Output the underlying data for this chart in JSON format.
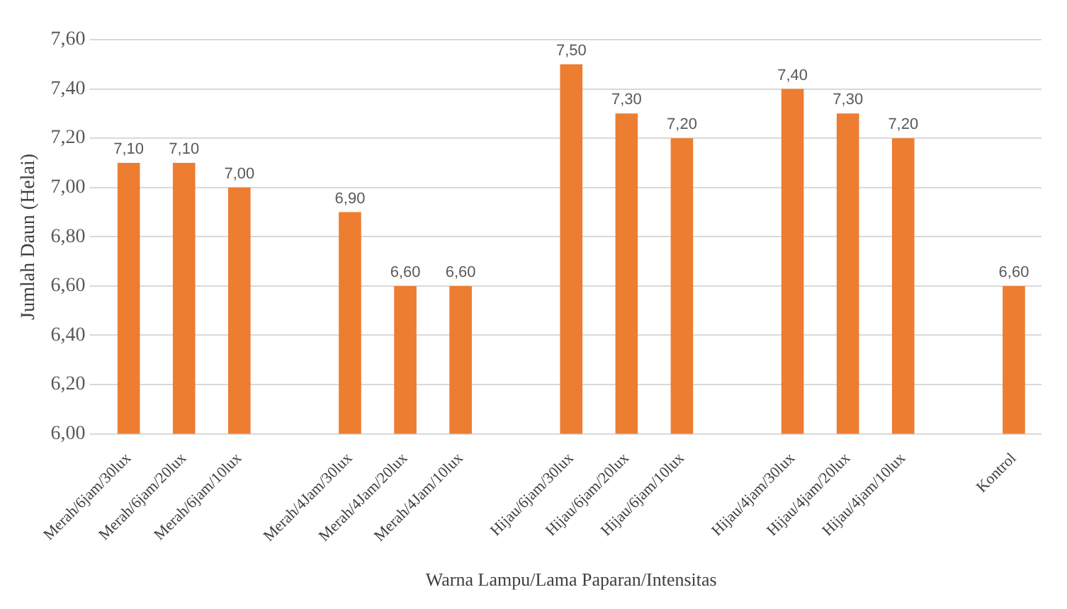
{
  "chart_data": {
    "type": "bar",
    "xlabel": "Warna Lampu/Lama Paparan/Intensitas",
    "ylabel": "Jumlah Daun (Helai)",
    "categories": [
      "Merah/6jam/30lux",
      "Merah/6jam/20lux",
      "Merah/6jam/10lux",
      null,
      "Merah/4Jam/30lux",
      "Merah/4Jam/20lux",
      "Merah/4Jam/10lux",
      null,
      "Hijau/6jam/30lux",
      "Hijau/6jam/20lux",
      "Hijau/6jam/10lux",
      null,
      "Hijau/4jam/30lux",
      "Hijau/4jam/20lux",
      "Hijau/4jam/10lux",
      null,
      "Kontrol"
    ],
    "values": [
      7.1,
      7.1,
      7.0,
      null,
      6.9,
      6.6,
      6.6,
      null,
      7.5,
      7.3,
      7.2,
      null,
      7.4,
      7.3,
      7.2,
      null,
      6.6
    ],
    "value_labels": [
      "7,10",
      "7,10",
      "7,00",
      null,
      "6,90",
      "6,60",
      "6,60",
      null,
      "7,50",
      "7,30",
      "7,20",
      null,
      "7,40",
      "7,30",
      "7,20",
      null,
      "6,60"
    ],
    "color": "#ed7d31",
    "ylim": [
      6.0,
      7.6
    ],
    "yticks": [
      {
        "value": 6.0,
        "label": "6,00"
      },
      {
        "value": 6.2,
        "label": "6,20"
      },
      {
        "value": 6.4,
        "label": "6,40"
      },
      {
        "value": 6.6,
        "label": "6,60"
      },
      {
        "value": 6.8,
        "label": "6,80"
      },
      {
        "value": 7.0,
        "label": "7,00"
      },
      {
        "value": 7.2,
        "label": "7,20"
      },
      {
        "value": 7.4,
        "label": "7,40"
      },
      {
        "value": 7.6,
        "label": "7,60"
      }
    ],
    "grid": "y",
    "legend": false
  }
}
